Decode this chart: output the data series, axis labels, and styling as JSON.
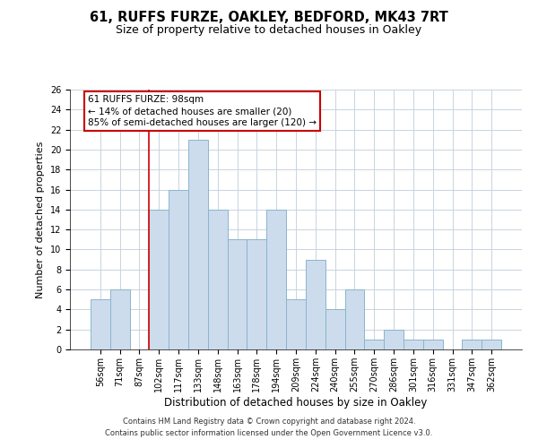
{
  "title": "61, RUFFS FURZE, OAKLEY, BEDFORD, MK43 7RT",
  "subtitle": "Size of property relative to detached houses in Oakley",
  "xlabel": "Distribution of detached houses by size in Oakley",
  "ylabel": "Number of detached properties",
  "bar_labels": [
    "56sqm",
    "71sqm",
    "87sqm",
    "102sqm",
    "117sqm",
    "133sqm",
    "148sqm",
    "163sqm",
    "178sqm",
    "194sqm",
    "209sqm",
    "224sqm",
    "240sqm",
    "255sqm",
    "270sqm",
    "286sqm",
    "301sqm",
    "316sqm",
    "331sqm",
    "347sqm",
    "362sqm"
  ],
  "bar_values": [
    5,
    6,
    0,
    14,
    16,
    21,
    14,
    11,
    11,
    14,
    5,
    9,
    4,
    6,
    1,
    2,
    1,
    1,
    0,
    1,
    1
  ],
  "bar_color": "#ccdced",
  "bar_edge_color": "#8ab4ce",
  "vline_color": "#cc0000",
  "vline_pos": 2.5,
  "ylim": [
    0,
    26
  ],
  "yticks": [
    0,
    2,
    4,
    6,
    8,
    10,
    12,
    14,
    16,
    18,
    20,
    22,
    24,
    26
  ],
  "annotation_title": "61 RUFFS FURZE: 98sqm",
  "annotation_line1": "← 14% of detached houses are smaller (20)",
  "annotation_line2": "85% of semi-detached houses are larger (120) →",
  "annotation_box_facecolor": "#ffffff",
  "annotation_box_edgecolor": "#cc0000",
  "grid_color": "#c8d4e0",
  "footer1": "Contains HM Land Registry data © Crown copyright and database right 2024.",
  "footer2": "Contains public sector information licensed under the Open Government Licence v3.0."
}
